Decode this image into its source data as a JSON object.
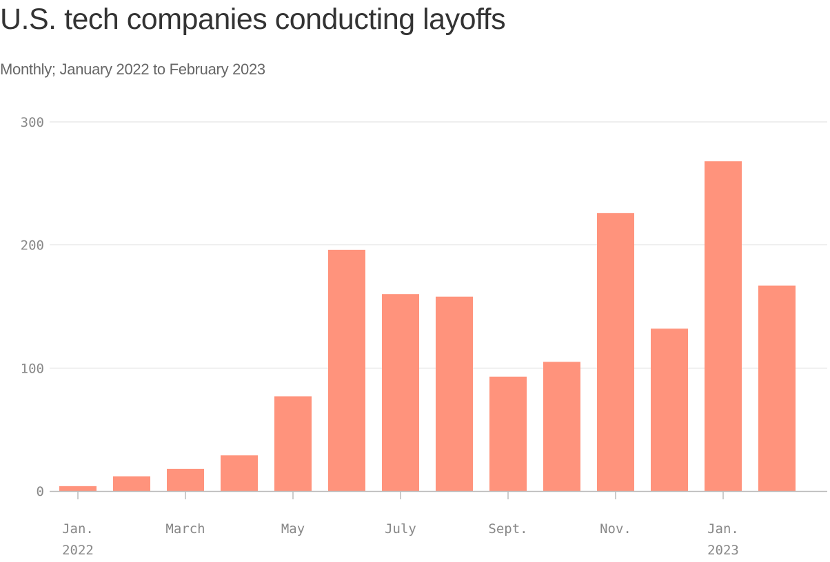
{
  "chart_data": {
    "type": "bar",
    "title": "U.S. tech companies conducting layoffs",
    "subtitle": "Monthly; January 2022 to February 2023",
    "categories": [
      "2022-01",
      "2022-02",
      "2022-03",
      "2022-04",
      "2022-05",
      "2022-06",
      "2022-07",
      "2022-08",
      "2022-09",
      "2022-10",
      "2022-11",
      "2022-12",
      "2023-01",
      "2023-02"
    ],
    "values": [
      4,
      12,
      18,
      29,
      77,
      196,
      160,
      158,
      93,
      105,
      226,
      132,
      268,
      167
    ],
    "x_tick_labels": [
      {
        "category": "2022-01",
        "label": "Jan.",
        "year": "2022"
      },
      {
        "category": "2022-03",
        "label": "March",
        "year": ""
      },
      {
        "category": "2022-05",
        "label": "May",
        "year": ""
      },
      {
        "category": "2022-07",
        "label": "July",
        "year": ""
      },
      {
        "category": "2022-09",
        "label": "Sept.",
        "year": ""
      },
      {
        "category": "2022-11",
        "label": "Nov.",
        "year": ""
      },
      {
        "category": "2023-01",
        "label": "Jan.",
        "year": "2023"
      }
    ],
    "y_ticks": [
      0,
      100,
      200,
      300
    ],
    "ylim": [
      0,
      300
    ],
    "xlabel": "",
    "ylabel": "",
    "grid": true,
    "bar_color": "#ff937c"
  }
}
